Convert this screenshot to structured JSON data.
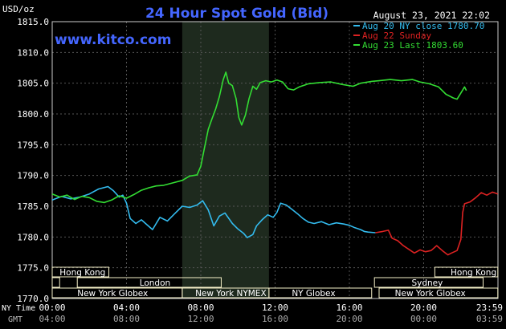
{
  "chart_data": {
    "type": "line",
    "title": "24 Hour Spot Gold (Bid)",
    "unit_label": "USD/oz",
    "date_label": "August 23, 2021 22:02",
    "watermark": "www.kitco.com",
    "ylim": [
      1770.0,
      1815.0
    ],
    "y_ticks": [
      "1815.0",
      "1810.0",
      "1805.0",
      "1800.0",
      "1795.0",
      "1790.0",
      "1785.0",
      "1780.0",
      "1775.0",
      "1770.0"
    ],
    "x_hours_range": [
      0,
      24
    ],
    "x_tick_hours": [
      0,
      4,
      8,
      12,
      16,
      20,
      24
    ],
    "x_tick_labels_ny": [
      "00:00",
      "04:00",
      "08:00",
      "12:00",
      "16:00",
      "20:00",
      "23:59"
    ],
    "x_tick_labels_gmt": [
      "04:00",
      "08:00",
      "12:00",
      "16:00",
      "20:00",
      "00:00",
      "03:59"
    ],
    "ny_time_label": "NY Time",
    "gmt_label": "GMT",
    "shaded_hours": [
      7.0,
      11.67
    ],
    "colors": {
      "aug20": "#33bbee",
      "aug22": "#dd2222",
      "aug23": "#33dd33",
      "title": "#4466ff",
      "band_fill": "#f5f0c8",
      "shade": "#1e2a1e"
    },
    "series": [
      {
        "name": "Aug 20 NY close 1780.70",
        "color": "#33bbee",
        "points": [
          [
            0,
            1786.0
          ],
          [
            0.5,
            1786.6
          ],
          [
            1.0,
            1786.2
          ],
          [
            1.5,
            1786.5
          ],
          [
            2.0,
            1787.0
          ],
          [
            2.5,
            1787.8
          ],
          [
            3.0,
            1788.2
          ],
          [
            3.3,
            1787.5
          ],
          [
            3.6,
            1786.5
          ],
          [
            3.8,
            1786.8
          ],
          [
            4.0,
            1785.5
          ],
          [
            4.2,
            1783.0
          ],
          [
            4.5,
            1782.2
          ],
          [
            4.8,
            1782.8
          ],
          [
            5.1,
            1782.0
          ],
          [
            5.4,
            1781.2
          ],
          [
            5.8,
            1783.2
          ],
          [
            6.2,
            1782.6
          ],
          [
            6.6,
            1783.8
          ],
          [
            7.0,
            1785.0
          ],
          [
            7.4,
            1784.8
          ],
          [
            7.8,
            1785.2
          ],
          [
            8.1,
            1785.9
          ],
          [
            8.4,
            1784.4
          ],
          [
            8.7,
            1781.8
          ],
          [
            9.0,
            1783.4
          ],
          [
            9.3,
            1783.9
          ],
          [
            9.7,
            1782.2
          ],
          [
            10.0,
            1781.3
          ],
          [
            10.3,
            1780.6
          ],
          [
            10.5,
            1779.9
          ],
          [
            10.8,
            1780.4
          ],
          [
            11.0,
            1781.8
          ],
          [
            11.3,
            1782.8
          ],
          [
            11.6,
            1783.6
          ],
          [
            11.9,
            1783.2
          ],
          [
            12.1,
            1784.0
          ],
          [
            12.3,
            1785.5
          ],
          [
            12.6,
            1785.2
          ],
          [
            12.9,
            1784.5
          ],
          [
            13.2,
            1783.8
          ],
          [
            13.5,
            1783.0
          ],
          [
            13.8,
            1782.4
          ],
          [
            14.1,
            1782.2
          ],
          [
            14.5,
            1782.5
          ],
          [
            14.9,
            1782.0
          ],
          [
            15.3,
            1782.3
          ],
          [
            15.7,
            1782.1
          ],
          [
            16.0,
            1781.9
          ],
          [
            16.3,
            1781.5
          ],
          [
            16.6,
            1781.2
          ],
          [
            16.8,
            1780.9
          ],
          [
            17.0,
            1780.8
          ],
          [
            17.4,
            1780.7
          ]
        ]
      },
      {
        "name": "Aug 22 Sunday",
        "color": "#dd2222",
        "points": [
          [
            17.4,
            1780.7
          ],
          [
            17.8,
            1780.9
          ],
          [
            18.1,
            1781.1
          ],
          [
            18.3,
            1779.8
          ],
          [
            18.6,
            1779.4
          ],
          [
            18.9,
            1778.6
          ],
          [
            19.2,
            1778.0
          ],
          [
            19.5,
            1777.4
          ],
          [
            19.8,
            1777.9
          ],
          [
            20.1,
            1777.6
          ],
          [
            20.4,
            1777.8
          ],
          [
            20.7,
            1778.6
          ],
          [
            21.0,
            1777.8
          ],
          [
            21.3,
            1777.1
          ],
          [
            21.5,
            1777.4
          ],
          [
            21.8,
            1777.8
          ],
          [
            22.0,
            1779.6
          ],
          [
            22.1,
            1784.0
          ],
          [
            22.2,
            1785.4
          ],
          [
            22.5,
            1785.7
          ],
          [
            22.8,
            1786.4
          ],
          [
            23.1,
            1787.2
          ],
          [
            23.4,
            1786.8
          ],
          [
            23.7,
            1787.3
          ],
          [
            23.99,
            1787.0
          ]
        ]
      },
      {
        "name": "Aug 23 Last 1803.60",
        "color": "#33dd33",
        "points": [
          [
            0,
            1787.0
          ],
          [
            0.4,
            1786.5
          ],
          [
            0.8,
            1786.8
          ],
          [
            1.2,
            1786.1
          ],
          [
            1.6,
            1786.6
          ],
          [
            2.0,
            1786.4
          ],
          [
            2.4,
            1785.8
          ],
          [
            2.8,
            1785.6
          ],
          [
            3.2,
            1786.0
          ],
          [
            3.6,
            1786.7
          ],
          [
            4.0,
            1786.3
          ],
          [
            4.4,
            1786.9
          ],
          [
            4.8,
            1787.6
          ],
          [
            5.2,
            1788.0
          ],
          [
            5.6,
            1788.3
          ],
          [
            6.0,
            1788.4
          ],
          [
            6.5,
            1788.8
          ],
          [
            7.0,
            1789.2
          ],
          [
            7.4,
            1789.9
          ],
          [
            7.8,
            1790.1
          ],
          [
            8.0,
            1791.5
          ],
          [
            8.2,
            1794.5
          ],
          [
            8.4,
            1797.5
          ],
          [
            8.6,
            1799.2
          ],
          [
            8.8,
            1800.8
          ],
          [
            9.0,
            1802.8
          ],
          [
            9.2,
            1805.5
          ],
          [
            9.35,
            1806.8
          ],
          [
            9.5,
            1805.0
          ],
          [
            9.7,
            1804.6
          ],
          [
            9.9,
            1802.5
          ],
          [
            10.05,
            1799.4
          ],
          [
            10.2,
            1798.2
          ],
          [
            10.4,
            1799.8
          ],
          [
            10.6,
            1802.5
          ],
          [
            10.8,
            1804.5
          ],
          [
            11.0,
            1804.0
          ],
          [
            11.2,
            1805.1
          ],
          [
            11.5,
            1805.4
          ],
          [
            11.8,
            1805.2
          ],
          [
            12.1,
            1805.5
          ],
          [
            12.4,
            1805.2
          ],
          [
            12.7,
            1804.1
          ],
          [
            13.0,
            1803.9
          ],
          [
            13.3,
            1804.4
          ],
          [
            13.8,
            1804.9
          ],
          [
            14.4,
            1805.1
          ],
          [
            15.0,
            1805.2
          ],
          [
            15.6,
            1804.8
          ],
          [
            16.2,
            1804.5
          ],
          [
            16.6,
            1805.0
          ],
          [
            17.2,
            1805.3
          ],
          [
            17.6,
            1805.4
          ],
          [
            18.2,
            1805.6
          ],
          [
            18.8,
            1805.4
          ],
          [
            19.4,
            1805.6
          ],
          [
            19.8,
            1805.2
          ],
          [
            20.3,
            1804.9
          ],
          [
            20.8,
            1804.4
          ],
          [
            21.2,
            1803.2
          ],
          [
            21.6,
            1802.6
          ],
          [
            21.8,
            1802.4
          ],
          [
            22.0,
            1803.4
          ],
          [
            22.2,
            1804.4
          ],
          [
            22.3,
            1803.8
          ]
        ]
      }
    ],
    "bands": [
      {
        "label": "Hong Kong",
        "row": 0,
        "start": 0.0,
        "end": 3.05,
        "label_at": 0.4
      },
      {
        "label": "Hong Kong",
        "row": 0,
        "start": 20.6,
        "end": 23.99,
        "label_at": 21.45
      },
      {
        "label": "London",
        "row": 1,
        "start": 0.0,
        "end": 0.4,
        "label_at": null
      },
      {
        "label": "London",
        "row": 1,
        "start": 1.35,
        "end": 9.1,
        "label_at": 4.7
      },
      {
        "label": "Sydney",
        "row": 1,
        "start": 17.35,
        "end": 23.2,
        "label_at": 19.35
      },
      {
        "label": "New York Globex",
        "row": 2,
        "start": 0.0,
        "end": 7.0,
        "label_at": 1.35
      },
      {
        "label": "New York NYMEX",
        "row": 2,
        "start": 7.0,
        "end": 11.67,
        "label_at": 7.7
      },
      {
        "label": "NY Globex",
        "row": 2,
        "start": 11.67,
        "end": 17.2,
        "label_at": 12.9
      },
      {
        "label": "New York Globex",
        "row": 2,
        "start": 17.6,
        "end": 23.99,
        "label_at": 18.45
      }
    ]
  }
}
